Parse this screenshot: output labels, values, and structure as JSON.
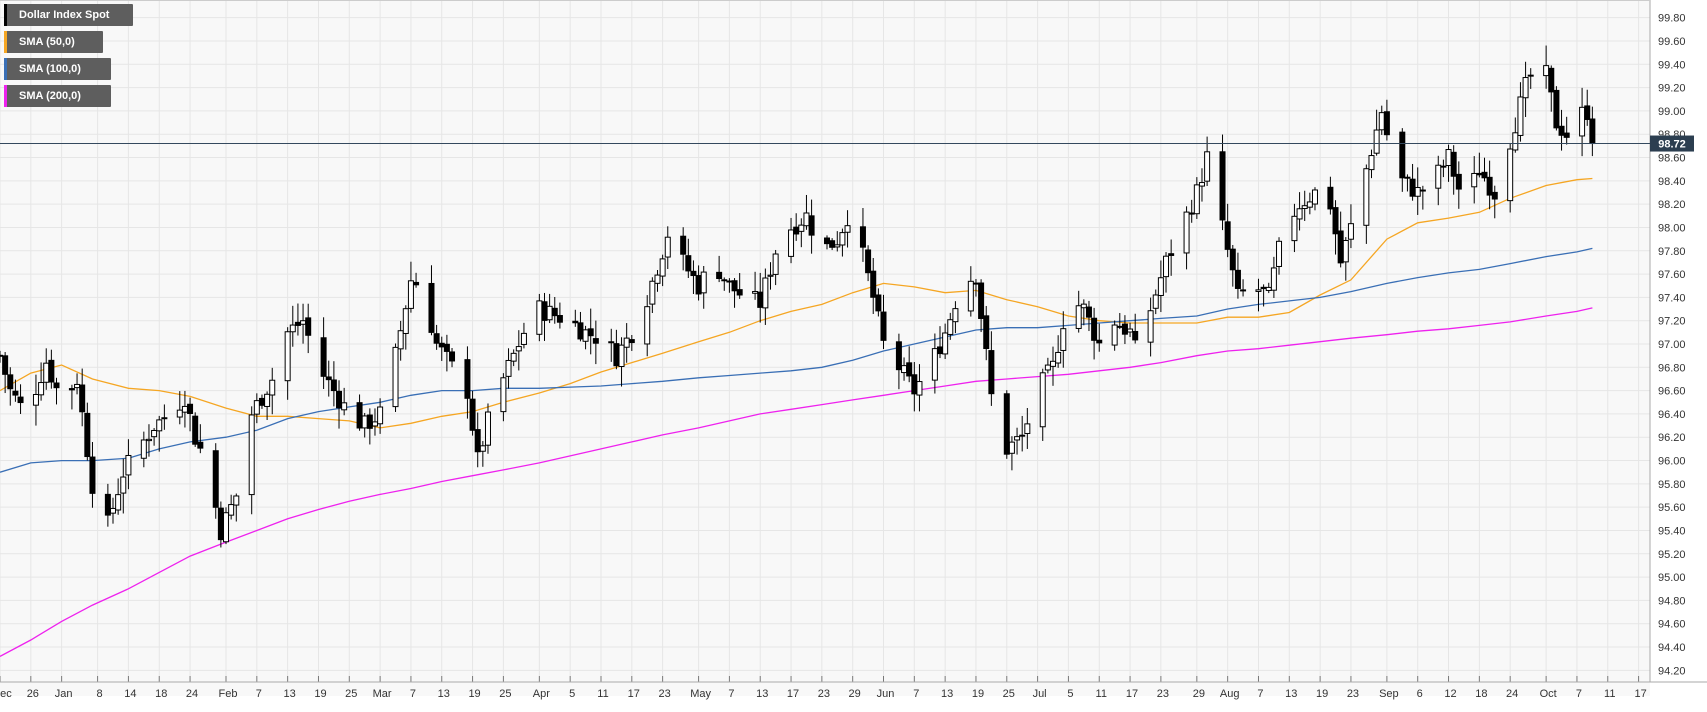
{
  "title": "Dollar Index Spot",
  "legend": [
    {
      "label": "Dollar Index Spot",
      "color": "#000000"
    },
    {
      "label": "SMA (50,0)",
      "color": "#f5a623"
    },
    {
      "label": "SMA (100,0)",
      "color": "#3a6fb5"
    },
    {
      "label": "SMA (200,0)",
      "color": "#ee22ee"
    }
  ],
  "current_price_label": "98.72",
  "colors": {
    "up": "#ffffff",
    "down": "#000000",
    "grid": "#e6e6e6",
    "current_line": "#34495e",
    "badge": "#2c3e50"
  },
  "chart_data": {
    "type": "candlestick",
    "title": "",
    "xlabel": "",
    "ylabel": "",
    "ylim": [
      94.0,
      100.0
    ],
    "yticks": [
      94.2,
      94.4,
      94.6,
      94.8,
      95.0,
      95.2,
      95.4,
      95.6,
      95.8,
      96.0,
      96.2,
      96.4,
      96.6,
      96.8,
      97.0,
      97.2,
      97.4,
      97.6,
      97.8,
      98.0,
      98.2,
      98.4,
      98.6,
      98.8,
      99.0,
      99.2,
      99.4,
      99.6,
      99.8
    ],
    "ytick_labels": [
      "94.20",
      "94.40",
      "94.60",
      "94.80",
      "95.00",
      "95.20",
      "95.40",
      "95.60",
      "95.80",
      "96.00",
      "96.20",
      "96.40",
      "96.60",
      "96.80",
      "97.00",
      "97.20",
      "97.40",
      "97.60",
      "97.80",
      "98.00",
      "98.20",
      "98.40",
      "98.60",
      "98.80",
      "99.00",
      "99.20",
      "99.40",
      "99.60",
      "99.80"
    ],
    "xticks": [
      {
        "day": 0,
        "label": "Dec"
      },
      {
        "day": 6,
        "label": "26"
      },
      {
        "day": 12,
        "label": "Jan"
      },
      {
        "day": 19,
        "label": "8"
      },
      {
        "day": 25,
        "label": "14"
      },
      {
        "day": 31,
        "label": "18"
      },
      {
        "day": 37,
        "label": "24"
      },
      {
        "day": 44,
        "label": "Feb"
      },
      {
        "day": 50,
        "label": "7"
      },
      {
        "day": 56,
        "label": "13"
      },
      {
        "day": 62,
        "label": "19"
      },
      {
        "day": 68,
        "label": "25"
      },
      {
        "day": 74,
        "label": "Mar"
      },
      {
        "day": 80,
        "label": "7"
      },
      {
        "day": 86,
        "label": "13"
      },
      {
        "day": 92,
        "label": "19"
      },
      {
        "day": 98,
        "label": "25"
      },
      {
        "day": 105,
        "label": "Apr"
      },
      {
        "day": 111,
        "label": "5"
      },
      {
        "day": 117,
        "label": "11"
      },
      {
        "day": 123,
        "label": "17"
      },
      {
        "day": 129,
        "label": "23"
      },
      {
        "day": 136,
        "label": "May"
      },
      {
        "day": 142,
        "label": "7"
      },
      {
        "day": 148,
        "label": "13"
      },
      {
        "day": 154,
        "label": "17"
      },
      {
        "day": 160,
        "label": "23"
      },
      {
        "day": 166,
        "label": "29"
      },
      {
        "day": 172,
        "label": "Jun"
      },
      {
        "day": 178,
        "label": "7"
      },
      {
        "day": 184,
        "label": "13"
      },
      {
        "day": 190,
        "label": "19"
      },
      {
        "day": 196,
        "label": "25"
      },
      {
        "day": 202,
        "label": "Jul"
      },
      {
        "day": 208,
        "label": "5"
      },
      {
        "day": 214,
        "label": "11"
      },
      {
        "day": 220,
        "label": "17"
      },
      {
        "day": 226,
        "label": "23"
      },
      {
        "day": 233,
        "label": "29"
      },
      {
        "day": 239,
        "label": "Aug"
      },
      {
        "day": 245,
        "label": "7"
      },
      {
        "day": 251,
        "label": "13"
      },
      {
        "day": 257,
        "label": "19"
      },
      {
        "day": 263,
        "label": "23"
      },
      {
        "day": 270,
        "label": "Sep"
      },
      {
        "day": 276,
        "label": "6"
      },
      {
        "day": 282,
        "label": "12"
      },
      {
        "day": 288,
        "label": "18"
      },
      {
        "day": 294,
        "label": "24"
      },
      {
        "day": 301,
        "label": "Oct"
      },
      {
        "day": 307,
        "label": "7"
      },
      {
        "day": 313,
        "label": "11"
      },
      {
        "day": 319,
        "label": "17"
      }
    ],
    "x_range_days": [
      0,
      322
    ],
    "anchors": [
      [
        0,
        96.9
      ],
      [
        2,
        96.6
      ],
      [
        5,
        96.4
      ],
      [
        9,
        96.85
      ],
      [
        12,
        96.5
      ],
      [
        15,
        96.7
      ],
      [
        18,
        95.8
      ],
      [
        20,
        95.3
      ],
      [
        22,
        95.6
      ],
      [
        24,
        95.9
      ],
      [
        27,
        96.1
      ],
      [
        30,
        96.3
      ],
      [
        33,
        96.4
      ],
      [
        36,
        96.55
      ],
      [
        38,
        96.2
      ],
      [
        40,
        96.0
      ],
      [
        43,
        95.4
      ],
      [
        46,
        95.7
      ],
      [
        49,
        96.4
      ],
      [
        53,
        96.7
      ],
      [
        56,
        97.1
      ],
      [
        59,
        97.2
      ],
      [
        62,
        96.8
      ],
      [
        65,
        96.6
      ],
      [
        68,
        96.4
      ],
      [
        71,
        96.3
      ],
      [
        74,
        96.4
      ],
      [
        77,
        96.9
      ],
      [
        80,
        97.55
      ],
      [
        82,
        97.5
      ],
      [
        85,
        97.0
      ],
      [
        88,
        96.8
      ],
      [
        91,
        96.6
      ],
      [
        93,
        96.0
      ],
      [
        96,
        96.5
      ],
      [
        99,
        96.8
      ],
      [
        102,
        97.1
      ],
      [
        105,
        97.3
      ],
      [
        108,
        97.25
      ],
      [
        111,
        97.2
      ],
      [
        114,
        97.1
      ],
      [
        117,
        97.05
      ],
      [
        120,
        96.9
      ],
      [
        123,
        97.1
      ],
      [
        126,
        97.4
      ],
      [
        129,
        97.8
      ],
      [
        131,
        98.1
      ],
      [
        133,
        97.7
      ],
      [
        136,
        97.5
      ],
      [
        139,
        97.7
      ],
      [
        142,
        97.5
      ],
      [
        145,
        97.4
      ],
      [
        148,
        97.35
      ],
      [
        151,
        97.8
      ],
      [
        154,
        98.0
      ],
      [
        157,
        98.1
      ],
      [
        160,
        97.8
      ],
      [
        163,
        97.9
      ],
      [
        166,
        98.2
      ],
      [
        168,
        97.75
      ],
      [
        170,
        97.4
      ],
      [
        172,
        97.0
      ],
      [
        175,
        96.8
      ],
      [
        178,
        96.6
      ],
      [
        181,
        96.8
      ],
      [
        184,
        97.1
      ],
      [
        187,
        97.5
      ],
      [
        190,
        97.6
      ],
      [
        192,
        96.9
      ],
      [
        194,
        96.2
      ],
      [
        196,
        96.1
      ],
      [
        199,
        96.2
      ],
      [
        202,
        96.6
      ],
      [
        205,
        96.8
      ],
      [
        208,
        97.4
      ],
      [
        211,
        97.3
      ],
      [
        214,
        97.0
      ],
      [
        217,
        97.2
      ],
      [
        220,
        97.1
      ],
      [
        222,
        96.8
      ],
      [
        224,
        97.3
      ],
      [
        227,
        97.7
      ],
      [
        230,
        98.0
      ],
      [
        233,
        98.3
      ],
      [
        235,
        98.6
      ],
      [
        237,
        98.2
      ],
      [
        239,
        97.8
      ],
      [
        241,
        97.4
      ],
      [
        244,
        97.5
      ],
      [
        247,
        97.4
      ],
      [
        250,
        98.0
      ],
      [
        253,
        98.2
      ],
      [
        256,
        98.3
      ],
      [
        259,
        98.2
      ],
      [
        261,
        97.7
      ],
      [
        263,
        98.0
      ],
      [
        266,
        98.5
      ],
      [
        269,
        99.0
      ],
      [
        271,
        98.6
      ],
      [
        273,
        98.4
      ],
      [
        276,
        98.3
      ],
      [
        279,
        98.4
      ],
      [
        282,
        98.6
      ],
      [
        285,
        98.2
      ],
      [
        288,
        98.5
      ],
      [
        291,
        98.3
      ],
      [
        293,
        98.6
      ],
      [
        295,
        98.9
      ],
      [
        297,
        99.2
      ],
      [
        299,
        99.4
      ],
      [
        301,
        99.3
      ],
      [
        303,
        98.9
      ],
      [
        305,
        98.8
      ],
      [
        307,
        98.95
      ],
      [
        309,
        99.0
      ],
      [
        310,
        98.72
      ]
    ],
    "series": [
      {
        "name": "SMA (50,0)",
        "color": "#f5a623",
        "points": [
          [
            0,
            96.6
          ],
          [
            6,
            96.75
          ],
          [
            12,
            96.82
          ],
          [
            18,
            96.7
          ],
          [
            25,
            96.62
          ],
          [
            31,
            96.6
          ],
          [
            37,
            96.55
          ],
          [
            44,
            96.45
          ],
          [
            50,
            96.38
          ],
          [
            56,
            96.38
          ],
          [
            62,
            96.36
          ],
          [
            68,
            96.34
          ],
          [
            74,
            96.28
          ],
          [
            80,
            96.32
          ],
          [
            86,
            96.38
          ],
          [
            92,
            96.42
          ],
          [
            98,
            96.5
          ],
          [
            105,
            96.58
          ],
          [
            111,
            96.66
          ],
          [
            117,
            96.76
          ],
          [
            123,
            96.84
          ],
          [
            129,
            96.92
          ],
          [
            136,
            97.02
          ],
          [
            142,
            97.1
          ],
          [
            148,
            97.2
          ],
          [
            154,
            97.28
          ],
          [
            160,
            97.34
          ],
          [
            166,
            97.44
          ],
          [
            172,
            97.52
          ],
          [
            178,
            97.49
          ],
          [
            184,
            97.44
          ],
          [
            190,
            97.46
          ],
          [
            196,
            97.38
          ],
          [
            202,
            97.32
          ],
          [
            208,
            97.24
          ],
          [
            214,
            97.2
          ],
          [
            220,
            97.18
          ],
          [
            226,
            97.18
          ],
          [
            233,
            97.18
          ],
          [
            239,
            97.23
          ],
          [
            245,
            97.23
          ],
          [
            251,
            97.27
          ],
          [
            257,
            97.42
          ],
          [
            263,
            97.55
          ],
          [
            270,
            97.9
          ],
          [
            276,
            98.04
          ],
          [
            282,
            98.08
          ],
          [
            288,
            98.13
          ],
          [
            294,
            98.25
          ],
          [
            301,
            98.36
          ],
          [
            307,
            98.41
          ],
          [
            310,
            98.42
          ]
        ]
      },
      {
        "name": "SMA (100,0)",
        "color": "#3a6fb5",
        "points": [
          [
            0,
            95.9
          ],
          [
            6,
            95.98
          ],
          [
            12,
            96.0
          ],
          [
            18,
            96.0
          ],
          [
            25,
            96.02
          ],
          [
            31,
            96.1
          ],
          [
            37,
            96.16
          ],
          [
            44,
            96.2
          ],
          [
            50,
            96.26
          ],
          [
            56,
            96.36
          ],
          [
            62,
            96.42
          ],
          [
            68,
            96.46
          ],
          [
            74,
            96.5
          ],
          [
            80,
            96.56
          ],
          [
            86,
            96.6
          ],
          [
            92,
            96.6
          ],
          [
            98,
            96.62
          ],
          [
            105,
            96.62
          ],
          [
            111,
            96.63
          ],
          [
            117,
            96.64
          ],
          [
            123,
            96.66
          ],
          [
            129,
            96.68
          ],
          [
            136,
            96.71
          ],
          [
            142,
            96.73
          ],
          [
            148,
            96.75
          ],
          [
            154,
            96.77
          ],
          [
            160,
            96.8
          ],
          [
            166,
            96.86
          ],
          [
            172,
            96.94
          ],
          [
            178,
            97.0
          ],
          [
            184,
            97.06
          ],
          [
            190,
            97.12
          ],
          [
            196,
            97.14
          ],
          [
            202,
            97.14
          ],
          [
            208,
            97.16
          ],
          [
            214,
            97.18
          ],
          [
            220,
            97.2
          ],
          [
            226,
            97.22
          ],
          [
            233,
            97.24
          ],
          [
            239,
            97.3
          ],
          [
            245,
            97.34
          ],
          [
            251,
            97.37
          ],
          [
            257,
            97.4
          ],
          [
            263,
            97.45
          ],
          [
            270,
            97.52
          ],
          [
            276,
            97.57
          ],
          [
            282,
            97.61
          ],
          [
            288,
            97.64
          ],
          [
            294,
            97.69
          ],
          [
            301,
            97.75
          ],
          [
            307,
            97.79
          ],
          [
            310,
            97.82
          ]
        ]
      },
      {
        "name": "SMA (200,0)",
        "color": "#ee22ee",
        "points": [
          [
            0,
            94.32
          ],
          [
            6,
            94.46
          ],
          [
            12,
            94.62
          ],
          [
            18,
            94.76
          ],
          [
            25,
            94.9
          ],
          [
            31,
            95.04
          ],
          [
            37,
            95.18
          ],
          [
            44,
            95.3
          ],
          [
            50,
            95.4
          ],
          [
            56,
            95.5
          ],
          [
            62,
            95.58
          ],
          [
            68,
            95.65
          ],
          [
            74,
            95.71
          ],
          [
            80,
            95.76
          ],
          [
            86,
            95.82
          ],
          [
            92,
            95.87
          ],
          [
            98,
            95.92
          ],
          [
            105,
            95.98
          ],
          [
            111,
            96.04
          ],
          [
            117,
            96.1
          ],
          [
            123,
            96.16
          ],
          [
            129,
            96.22
          ],
          [
            136,
            96.28
          ],
          [
            142,
            96.34
          ],
          [
            148,
            96.4
          ],
          [
            154,
            96.44
          ],
          [
            160,
            96.48
          ],
          [
            166,
            96.52
          ],
          [
            172,
            96.56
          ],
          [
            178,
            96.6
          ],
          [
            184,
            96.64
          ],
          [
            190,
            96.68
          ],
          [
            196,
            96.7
          ],
          [
            202,
            96.72
          ],
          [
            208,
            96.74
          ],
          [
            214,
            96.77
          ],
          [
            220,
            96.8
          ],
          [
            226,
            96.84
          ],
          [
            233,
            96.9
          ],
          [
            239,
            96.94
          ],
          [
            245,
            96.96
          ],
          [
            251,
            96.99
          ],
          [
            257,
            97.02
          ],
          [
            263,
            97.05
          ],
          [
            270,
            97.08
          ],
          [
            276,
            97.11
          ],
          [
            282,
            97.13
          ],
          [
            288,
            97.16
          ],
          [
            294,
            97.19
          ],
          [
            301,
            97.24
          ],
          [
            307,
            97.28
          ],
          [
            310,
            97.31
          ]
        ]
      }
    ],
    "current_price": 98.72,
    "grid": true,
    "legend_position": "top-left"
  }
}
